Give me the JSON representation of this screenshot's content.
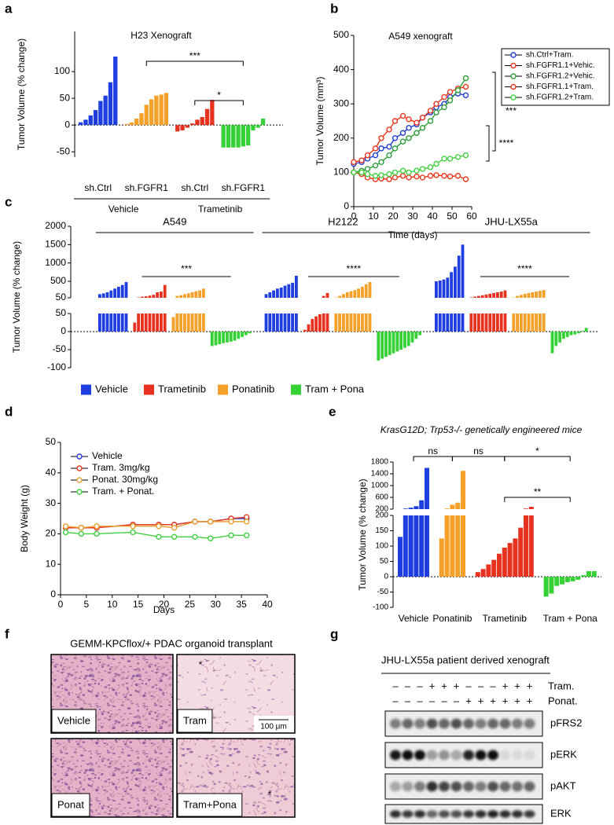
{
  "panel_labels": [
    "a",
    "b",
    "c",
    "d",
    "e",
    "f",
    "g"
  ],
  "chart_data": [
    {
      "type": "waterfall",
      "title": "H23 Xenograft",
      "ylabel": "Tumor Volume (% change)",
      "ylim": [
        -60,
        175
      ],
      "yticks": [
        -50,
        0,
        50,
        100
      ],
      "series": [
        {
          "name": "sh.Ctrl",
          "color": "#1e3ee0",
          "values": [
            5,
            10,
            18,
            28,
            45,
            55,
            80,
            128
          ]
        },
        {
          "name": "sh.FGFR1",
          "color": "#f5a028",
          "values": [
            2,
            5,
            12,
            22,
            38,
            48,
            55,
            57,
            60
          ]
        },
        {
          "name": "sh.Ctrl",
          "color": "#e83220",
          "values": [
            -12,
            -10,
            -5,
            3,
            10,
            15,
            30,
            47
          ]
        },
        {
          "name": "sh.FGFR1",
          "color": "#36d136",
          "values": [
            -42,
            -42,
            -42,
            -42,
            -40,
            -38,
            -10,
            -5,
            12
          ]
        }
      ],
      "group_labels": [
        "Vehicle",
        "Trametinib"
      ],
      "annotations": [
        "***",
        "*"
      ]
    },
    {
      "type": "line",
      "title": "A549 xenograft",
      "xlabel": "Time (days)",
      "ylabel": "Tumor Volume (mm³)",
      "x": [
        0,
        4,
        7,
        11,
        14,
        18,
        21,
        25,
        28,
        32,
        35,
        39,
        42,
        46,
        49,
        53,
        57
      ],
      "xlim": [
        0,
        60
      ],
      "xticks": [
        0,
        10,
        20,
        30,
        40,
        50,
        60
      ],
      "ylim": [
        0,
        500
      ],
      "yticks": [
        0,
        100,
        200,
        300,
        400,
        500
      ],
      "legend": "outside right",
      "series": [
        {
          "name": "sh.Ctrl+Tram.",
          "color": "#2340d0",
          "values": [
            125,
            130,
            140,
            150,
            170,
            175,
            200,
            215,
            230,
            240,
            260,
            275,
            290,
            300,
            320,
            330,
            325
          ]
        },
        {
          "name": "sh.FGFR1.1+Vehic.",
          "color": "#e8381f",
          "values": [
            130,
            135,
            150,
            170,
            200,
            225,
            250,
            265,
            255,
            245,
            260,
            280,
            300,
            320,
            335,
            345,
            350
          ]
        },
        {
          "name": "sh.FGFR1.2+Vehic.",
          "color": "#2e9e3a",
          "values": [
            100,
            105,
            110,
            120,
            130,
            150,
            170,
            190,
            200,
            215,
            230,
            250,
            275,
            290,
            310,
            340,
            375
          ]
        },
        {
          "name": "sh.FGFR1.1+Tram.",
          "color": "#e8381f",
          "values": [
            100,
            95,
            85,
            80,
            82,
            80,
            85,
            90,
            85,
            88,
            85,
            90,
            92,
            90,
            88,
            90,
            80
          ]
        },
        {
          "name": "sh.FGFR1.2+Tram.",
          "color": "#42d042",
          "values": [
            100,
            100,
            95,
            90,
            92,
            95,
            100,
            105,
            100,
            105,
            110,
            115,
            125,
            140,
            140,
            145,
            150
          ]
        }
      ],
      "annotations": [
        "***",
        "****"
      ]
    },
    {
      "type": "grouped-broken-waterfall",
      "ylabel": "Tumor Volume (% change)",
      "ylim": [
        -100,
        50
      ],
      "yticks": [
        -100,
        -50,
        0,
        50
      ],
      "ylim_upper": [
        50,
        2000
      ],
      "yticks_upper": [
        50,
        500,
        1000,
        1500,
        2000
      ],
      "series": [
        {
          "name": "Vehicle",
          "color": "#1e3ee0"
        },
        {
          "name": "Trametinib",
          "color": "#e83220"
        },
        {
          "name": "Ponatinib",
          "color": "#f5a028"
        },
        {
          "name": "Tram + Pona",
          "color": "#36d136"
        }
      ],
      "groups": [
        {
          "label": "A549",
          "annotation": "***",
          "values": [
            [
              150,
              170,
              200,
              250,
              300,
              350,
              400,
              480
            ],
            [
              25,
              60,
              80,
              90,
              110,
              130,
              200,
              220,
              400
            ],
            [
              40,
              100,
              120,
              150,
              170,
              200,
              230,
              250,
              300
            ],
            [
              -40,
              -38,
              -35,
              -32,
              -30,
              -28,
              -25,
              -20,
              -15,
              -10,
              -5
            ]
          ]
        },
        {
          "label": "H2122",
          "annotation": "****",
          "values": [
            [
              150,
              200,
              250,
              300,
              330,
              380,
              420,
              460,
              650
            ],
            [
              5,
              20,
              35,
              42,
              48,
              100,
              180
            ],
            [
              60,
              100,
              150,
              200,
              230,
              260,
              300,
              350,
              420,
              480
            ],
            [
              -80,
              -75,
              -70,
              -65,
              -60,
              -55,
              -50,
              -45,
              -40,
              -30,
              -20,
              -10
            ]
          ]
        },
        {
          "label": "JHU-LX55a",
          "annotation": "****",
          "values": [
            [
              500,
              520,
              550,
              600,
              750,
              900,
              1200,
              1500
            ],
            [
              60,
              80,
              100,
              120,
              140,
              160,
              180,
              200,
              220,
              250
            ],
            [
              60,
              100,
              130,
              160,
              180,
              200,
              220,
              240,
              260
            ],
            [
              -60,
              -40,
              -30,
              -20,
              -15,
              -10,
              -8,
              -5,
              2,
              10
            ]
          ]
        }
      ]
    },
    {
      "type": "line",
      "xlabel": "Days",
      "ylabel": "Body Weight (g)",
      "x": [
        1,
        4,
        7,
        14,
        19,
        22,
        26,
        29,
        33,
        36
      ],
      "xlim": [
        0,
        40
      ],
      "xticks": [
        0,
        5,
        10,
        15,
        20,
        25,
        30,
        35,
        40
      ],
      "ylim": [
        0,
        50
      ],
      "yticks": [
        0,
        10,
        20,
        30,
        40,
        50
      ],
      "legend": "upper left",
      "series": [
        {
          "name": "Vehicle",
          "color": "#2340d0",
          "values": [
            22,
            22,
            22,
            23,
            23,
            23,
            24,
            24,
            25,
            25
          ]
        },
        {
          "name": "Tram. 3mg/kg",
          "color": "#e8381f",
          "values": [
            22,
            22,
            22,
            23,
            23,
            23,
            24,
            24,
            25,
            25.5
          ]
        },
        {
          "name": "Ponat. 30mg/kg",
          "color": "#e8a030",
          "values": [
            22.5,
            22,
            22.5,
            22.5,
            22.5,
            22,
            24,
            24,
            24,
            24
          ]
        },
        {
          "name": "Tram. + Ponat.",
          "color": "#42d042",
          "values": [
            20.5,
            20,
            20,
            20.5,
            19,
            19,
            19,
            18.5,
            19.5,
            19.5
          ]
        }
      ]
    },
    {
      "type": "broken-waterfall",
      "title": "KrasG12D; Trp53-/- genetically engineered mice",
      "ylabel": "Tumor Volume (% change)",
      "ylim": [
        -100,
        200
      ],
      "yticks": [
        -100,
        -50,
        0,
        50,
        100,
        150,
        200
      ],
      "ylim_upper": [
        200,
        1800
      ],
      "yticks_upper": [
        200,
        600,
        1000,
        1400,
        1800
      ],
      "series": [
        {
          "name": "Vehicle",
          "color": "#1e3ee0",
          "values": [
            130,
            220,
            250,
            300,
            500,
            1600
          ]
        },
        {
          "name": "Ponatinib",
          "color": "#f5a028",
          "values": [
            125,
            220,
            350,
            420,
            1500
          ]
        },
        {
          "name": "Trametinib",
          "color": "#e83220",
          "values": [
            15,
            25,
            40,
            55,
            75,
            95,
            110,
            125,
            160,
            220,
            280
          ]
        },
        {
          "name": "Tram + Pona",
          "color": "#36d136",
          "values": [
            -65,
            -55,
            -30,
            -25,
            -18,
            -15,
            -10,
            5,
            18,
            18
          ]
        }
      ],
      "annotations": [
        "ns",
        "ns",
        "*",
        "**"
      ]
    }
  ],
  "figure_f": {
    "title": "GEMM-KPCflox/+ PDAC organoid transplant",
    "images": [
      {
        "label": "Vehicle"
      },
      {
        "label": "Tram",
        "scale_bar": "100 µm",
        "marker": "*"
      },
      {
        "label": "Ponat"
      },
      {
        "label": "Tram+Pona",
        "marker": "*"
      }
    ]
  },
  "figure_g": {
    "title": "JHU-LX55a patient derived xenograft",
    "treatments": [
      {
        "label": "Tram.",
        "lanes": [
          "–",
          "–",
          "–",
          "+",
          "+",
          "+",
          "–",
          "–",
          "–",
          "+",
          "+",
          "+"
        ]
      },
      {
        "label": "Ponat.",
        "lanes": [
          "–",
          "–",
          "–",
          "–",
          "–",
          "–",
          "+",
          "+",
          "+",
          "+",
          "+",
          "+"
        ]
      }
    ],
    "proteins": [
      "pFRS2",
      "pERK",
      "pAKT",
      "ERK"
    ]
  }
}
